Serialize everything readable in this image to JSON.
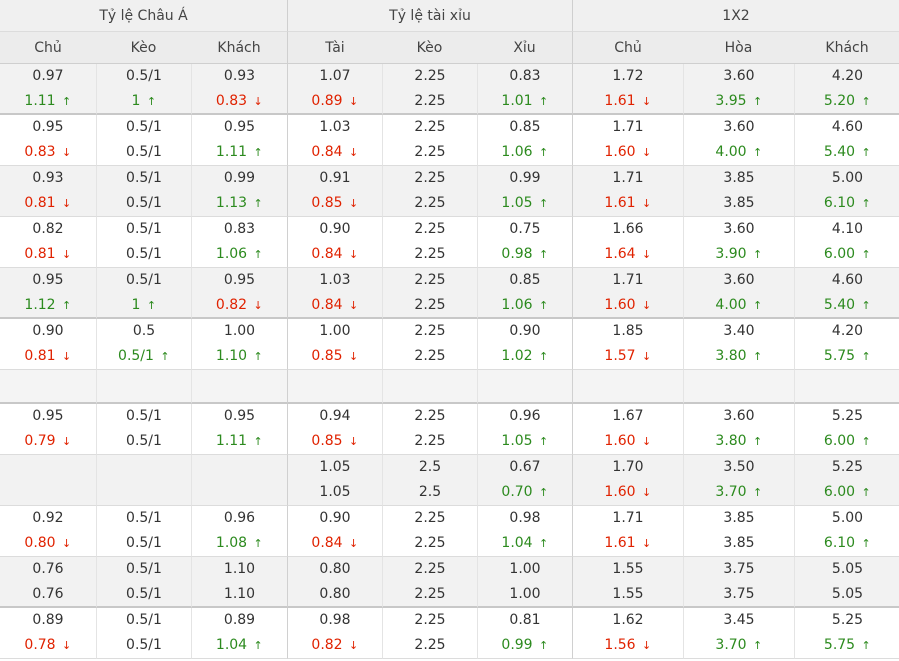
{
  "groups": [
    "Tỷ lệ Châu Á",
    "Tỷ lệ tài xỉu",
    "1X2"
  ],
  "headers": [
    "Chủ",
    "Kèo",
    "Khách",
    "Tài",
    "Kèo",
    "Xỉu",
    "Chủ",
    "Hòa",
    "Khách"
  ],
  "icons": {
    "up": "arrow-up-icon",
    "down": "arrow-down-icon"
  },
  "colors": {
    "up": "#2c8a1e",
    "down": "#e02200"
  },
  "rows": [
    {
      "type": "data",
      "alt": true,
      "thick": true,
      "cells": [
        [
          {
            "t": "0.97"
          },
          {
            "t": "1.11",
            "d": "up"
          }
        ],
        [
          {
            "t": "0.5/1"
          },
          {
            "t": "1",
            "d": "up"
          }
        ],
        [
          {
            "t": "0.93"
          },
          {
            "t": "0.83",
            "d": "down"
          }
        ],
        [
          {
            "t": "1.07"
          },
          {
            "t": "0.89",
            "d": "down"
          }
        ],
        [
          {
            "t": "2.25"
          },
          {
            "t": "2.25"
          }
        ],
        [
          {
            "t": "0.83"
          },
          {
            "t": "1.01",
            "d": "up"
          }
        ],
        [
          {
            "t": "1.72"
          },
          {
            "t": "1.61",
            "d": "down"
          }
        ],
        [
          {
            "t": "3.60"
          },
          {
            "t": "3.95",
            "d": "up"
          }
        ],
        [
          {
            "t": "4.20"
          },
          {
            "t": "5.20",
            "d": "up"
          }
        ]
      ]
    },
    {
      "type": "data",
      "alt": false,
      "cells": [
        [
          {
            "t": "0.95"
          },
          {
            "t": "0.83",
            "d": "down"
          }
        ],
        [
          {
            "t": "0.5/1"
          },
          {
            "t": "0.5/1"
          }
        ],
        [
          {
            "t": "0.95"
          },
          {
            "t": "1.11",
            "d": "up"
          }
        ],
        [
          {
            "t": "1.03"
          },
          {
            "t": "0.84",
            "d": "down"
          }
        ],
        [
          {
            "t": "2.25"
          },
          {
            "t": "2.25"
          }
        ],
        [
          {
            "t": "0.85"
          },
          {
            "t": "1.06",
            "d": "up"
          }
        ],
        [
          {
            "t": "1.71"
          },
          {
            "t": "1.60",
            "d": "down"
          }
        ],
        [
          {
            "t": "3.60"
          },
          {
            "t": "4.00",
            "d": "up"
          }
        ],
        [
          {
            "t": "4.60"
          },
          {
            "t": "5.40",
            "d": "up"
          }
        ]
      ]
    },
    {
      "type": "data",
      "alt": true,
      "cells": [
        [
          {
            "t": "0.93"
          },
          {
            "t": "0.81",
            "d": "down"
          }
        ],
        [
          {
            "t": "0.5/1"
          },
          {
            "t": "0.5/1"
          }
        ],
        [
          {
            "t": "0.99"
          },
          {
            "t": "1.13",
            "d": "up"
          }
        ],
        [
          {
            "t": "0.91"
          },
          {
            "t": "0.85",
            "d": "down"
          }
        ],
        [
          {
            "t": "2.25"
          },
          {
            "t": "2.25"
          }
        ],
        [
          {
            "t": "0.99"
          },
          {
            "t": "1.05",
            "d": "up"
          }
        ],
        [
          {
            "t": "1.71"
          },
          {
            "t": "1.61",
            "d": "down"
          }
        ],
        [
          {
            "t": "3.85"
          },
          {
            "t": "3.85"
          }
        ],
        [
          {
            "t": "5.00"
          },
          {
            "t": "6.10",
            "d": "up"
          }
        ]
      ]
    },
    {
      "type": "data",
      "alt": false,
      "cells": [
        [
          {
            "t": "0.82"
          },
          {
            "t": "0.81",
            "d": "down"
          }
        ],
        [
          {
            "t": "0.5/1"
          },
          {
            "t": "0.5/1"
          }
        ],
        [
          {
            "t": "0.83"
          },
          {
            "t": "1.06",
            "d": "up"
          }
        ],
        [
          {
            "t": "0.90"
          },
          {
            "t": "0.84",
            "d": "down"
          }
        ],
        [
          {
            "t": "2.25"
          },
          {
            "t": "2.25"
          }
        ],
        [
          {
            "t": "0.75"
          },
          {
            "t": "0.98",
            "d": "up"
          }
        ],
        [
          {
            "t": "1.66"
          },
          {
            "t": "1.64",
            "d": "down"
          }
        ],
        [
          {
            "t": "3.60"
          },
          {
            "t": "3.90",
            "d": "up"
          }
        ],
        [
          {
            "t": "4.10"
          },
          {
            "t": "6.00",
            "d": "up"
          }
        ]
      ]
    },
    {
      "type": "data",
      "alt": true,
      "thick": true,
      "cells": [
        [
          {
            "t": "0.95"
          },
          {
            "t": "1.12",
            "d": "up"
          }
        ],
        [
          {
            "t": "0.5/1"
          },
          {
            "t": "1",
            "d": "up"
          }
        ],
        [
          {
            "t": "0.95"
          },
          {
            "t": "0.82",
            "d": "down"
          }
        ],
        [
          {
            "t": "1.03"
          },
          {
            "t": "0.84",
            "d": "down"
          }
        ],
        [
          {
            "t": "2.25"
          },
          {
            "t": "2.25"
          }
        ],
        [
          {
            "t": "0.85"
          },
          {
            "t": "1.06",
            "d": "up"
          }
        ],
        [
          {
            "t": "1.71"
          },
          {
            "t": "1.60",
            "d": "down"
          }
        ],
        [
          {
            "t": "3.60"
          },
          {
            "t": "4.00",
            "d": "up"
          }
        ],
        [
          {
            "t": "4.60"
          },
          {
            "t": "5.40",
            "d": "up"
          }
        ]
      ]
    },
    {
      "type": "data",
      "alt": false,
      "cells": [
        [
          {
            "t": "0.90"
          },
          {
            "t": "0.81",
            "d": "down"
          }
        ],
        [
          {
            "t": "0.5"
          },
          {
            "t": "0.5/1",
            "d": "up"
          }
        ],
        [
          {
            "t": "1.00"
          },
          {
            "t": "1.10",
            "d": "up"
          }
        ],
        [
          {
            "t": "1.00"
          },
          {
            "t": "0.85",
            "d": "down"
          }
        ],
        [
          {
            "t": "2.25"
          },
          {
            "t": "2.25"
          }
        ],
        [
          {
            "t": "0.90"
          },
          {
            "t": "1.02",
            "d": "up"
          }
        ],
        [
          {
            "t": "1.85"
          },
          {
            "t": "1.57",
            "d": "down"
          }
        ],
        [
          {
            "t": "3.40"
          },
          {
            "t": "3.80",
            "d": "up"
          }
        ],
        [
          {
            "t": "4.20"
          },
          {
            "t": "5.75",
            "d": "up"
          }
        ]
      ]
    },
    {
      "type": "empty",
      "alt": true,
      "thick": true,
      "cells": [
        [],
        [],
        [],
        [],
        [],
        [],
        [],
        [],
        []
      ]
    },
    {
      "type": "data",
      "alt": false,
      "cells": [
        [
          {
            "t": "0.95"
          },
          {
            "t": "0.79",
            "d": "down"
          }
        ],
        [
          {
            "t": "0.5/1"
          },
          {
            "t": "0.5/1"
          }
        ],
        [
          {
            "t": "0.95"
          },
          {
            "t": "1.11",
            "d": "up"
          }
        ],
        [
          {
            "t": "0.94"
          },
          {
            "t": "0.85",
            "d": "down"
          }
        ],
        [
          {
            "t": "2.25"
          },
          {
            "t": "2.25"
          }
        ],
        [
          {
            "t": "0.96"
          },
          {
            "t": "1.05",
            "d": "up"
          }
        ],
        [
          {
            "t": "1.67"
          },
          {
            "t": "1.60",
            "d": "down"
          }
        ],
        [
          {
            "t": "3.60"
          },
          {
            "t": "3.80",
            "d": "up"
          }
        ],
        [
          {
            "t": "5.25"
          },
          {
            "t": "6.00",
            "d": "up"
          }
        ]
      ]
    },
    {
      "type": "data",
      "alt": true,
      "cells": [
        [],
        [],
        [],
        [
          {
            "t": "1.05"
          },
          {
            "t": "1.05"
          }
        ],
        [
          {
            "t": "2.5"
          },
          {
            "t": "2.5"
          }
        ],
        [
          {
            "t": "0.67"
          },
          {
            "t": "0.70",
            "d": "up"
          }
        ],
        [
          {
            "t": "1.70"
          },
          {
            "t": "1.60",
            "d": "down"
          }
        ],
        [
          {
            "t": "3.50"
          },
          {
            "t": "3.70",
            "d": "up"
          }
        ],
        [
          {
            "t": "5.25"
          },
          {
            "t": "6.00",
            "d": "up"
          }
        ]
      ]
    },
    {
      "type": "data",
      "alt": false,
      "cells": [
        [
          {
            "t": "0.92"
          },
          {
            "t": "0.80",
            "d": "down"
          }
        ],
        [
          {
            "t": "0.5/1"
          },
          {
            "t": "0.5/1"
          }
        ],
        [
          {
            "t": "0.96"
          },
          {
            "t": "1.08",
            "d": "up"
          }
        ],
        [
          {
            "t": "0.90"
          },
          {
            "t": "0.84",
            "d": "down"
          }
        ],
        [
          {
            "t": "2.25"
          },
          {
            "t": "2.25"
          }
        ],
        [
          {
            "t": "0.98"
          },
          {
            "t": "1.04",
            "d": "up"
          }
        ],
        [
          {
            "t": "1.71"
          },
          {
            "t": "1.61",
            "d": "down"
          }
        ],
        [
          {
            "t": "3.85"
          },
          {
            "t": "3.85"
          }
        ],
        [
          {
            "t": "5.00"
          },
          {
            "t": "6.10",
            "d": "up"
          }
        ]
      ]
    },
    {
      "type": "data",
      "alt": true,
      "thick": true,
      "cells": [
        [
          {
            "t": "0.76"
          },
          {
            "t": "0.76"
          }
        ],
        [
          {
            "t": "0.5/1"
          },
          {
            "t": "0.5/1"
          }
        ],
        [
          {
            "t": "1.10"
          },
          {
            "t": "1.10"
          }
        ],
        [
          {
            "t": "0.80"
          },
          {
            "t": "0.80"
          }
        ],
        [
          {
            "t": "2.25"
          },
          {
            "t": "2.25"
          }
        ],
        [
          {
            "t": "1.00"
          },
          {
            "t": "1.00"
          }
        ],
        [
          {
            "t": "1.55"
          },
          {
            "t": "1.55"
          }
        ],
        [
          {
            "t": "3.75"
          },
          {
            "t": "3.75"
          }
        ],
        [
          {
            "t": "5.05"
          },
          {
            "t": "5.05"
          }
        ]
      ]
    },
    {
      "type": "data",
      "alt": false,
      "cells": [
        [
          {
            "t": "0.89"
          },
          {
            "t": "0.78",
            "d": "down"
          }
        ],
        [
          {
            "t": "0.5/1"
          },
          {
            "t": "0.5/1"
          }
        ],
        [
          {
            "t": "0.89"
          },
          {
            "t": "1.04",
            "d": "up"
          }
        ],
        [
          {
            "t": "0.98"
          },
          {
            "t": "0.82",
            "d": "down"
          }
        ],
        [
          {
            "t": "2.25"
          },
          {
            "t": "2.25"
          }
        ],
        [
          {
            "t": "0.81"
          },
          {
            "t": "0.99",
            "d": "up"
          }
        ],
        [
          {
            "t": "1.62"
          },
          {
            "t": "1.56",
            "d": "down"
          }
        ],
        [
          {
            "t": "3.45"
          },
          {
            "t": "3.70",
            "d": "up"
          }
        ],
        [
          {
            "t": "5.25"
          },
          {
            "t": "5.75",
            "d": "up"
          }
        ]
      ]
    }
  ]
}
